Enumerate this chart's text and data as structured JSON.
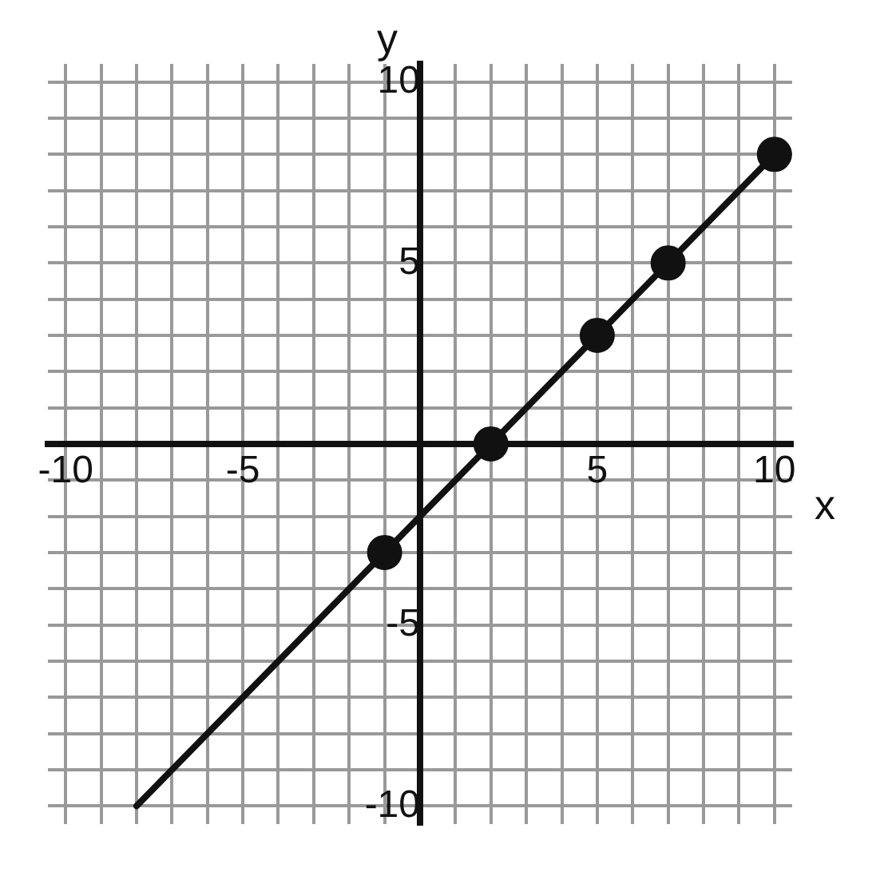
{
  "chart_data": {
    "type": "scatter",
    "xlabel": "x",
    "ylabel": "y",
    "xlim": [
      -10.5,
      10.5
    ],
    "ylim": [
      -10.5,
      10.5
    ],
    "xticks": [
      -10,
      {
        "value": -9,
        "label": null
      },
      {
        "value": -8,
        "label": null
      },
      {
        "value": -7,
        "label": null
      },
      {
        "value": -6,
        "label": null
      },
      -5,
      {
        "value": -4,
        "label": null
      },
      {
        "value": -3,
        "label": null
      },
      {
        "value": -2,
        "label": null
      },
      {
        "value": -1,
        "label": null
      },
      {
        "value": 0,
        "label": null
      },
      {
        "value": 1,
        "label": null
      },
      {
        "value": 2,
        "label": null
      },
      {
        "value": 3,
        "label": null
      },
      {
        "value": 4,
        "label": null
      },
      5,
      {
        "value": 6,
        "label": null
      },
      {
        "value": 7,
        "label": null
      },
      {
        "value": 8,
        "label": null
      },
      {
        "value": 9,
        "label": null
      },
      10
    ],
    "yticks": [
      -10,
      {
        "value": -9,
        "label": null
      },
      {
        "value": -8,
        "label": null
      },
      {
        "value": -7,
        "label": null
      },
      {
        "value": -6,
        "label": null
      },
      -5,
      {
        "value": -4,
        "label": null
      },
      {
        "value": -3,
        "label": null
      },
      {
        "value": -2,
        "label": null
      },
      {
        "value": -1,
        "label": null
      },
      {
        "value": 0,
        "label": null
      },
      {
        "value": 1,
        "label": null
      },
      {
        "value": 2,
        "label": null
      },
      {
        "value": 3,
        "label": null
      },
      {
        "value": 4,
        "label": null
      },
      5,
      {
        "value": 6,
        "label": null
      },
      {
        "value": 7,
        "label": null
      },
      {
        "value": 8,
        "label": null
      },
      {
        "value": 9,
        "label": null
      },
      10
    ],
    "grid": true,
    "legend": false,
    "series": [
      {
        "type": "line",
        "color": "#111111",
        "x": [
          -8,
          10
        ],
        "values": [
          -10,
          8
        ],
        "marker": "none",
        "line_style": "solid"
      },
      {
        "color": "#111111",
        "x": [
          -1,
          2,
          5,
          7,
          10
        ],
        "values": [
          -3,
          0,
          3,
          5,
          8
        ],
        "marker": "circle"
      }
    ]
  }
}
